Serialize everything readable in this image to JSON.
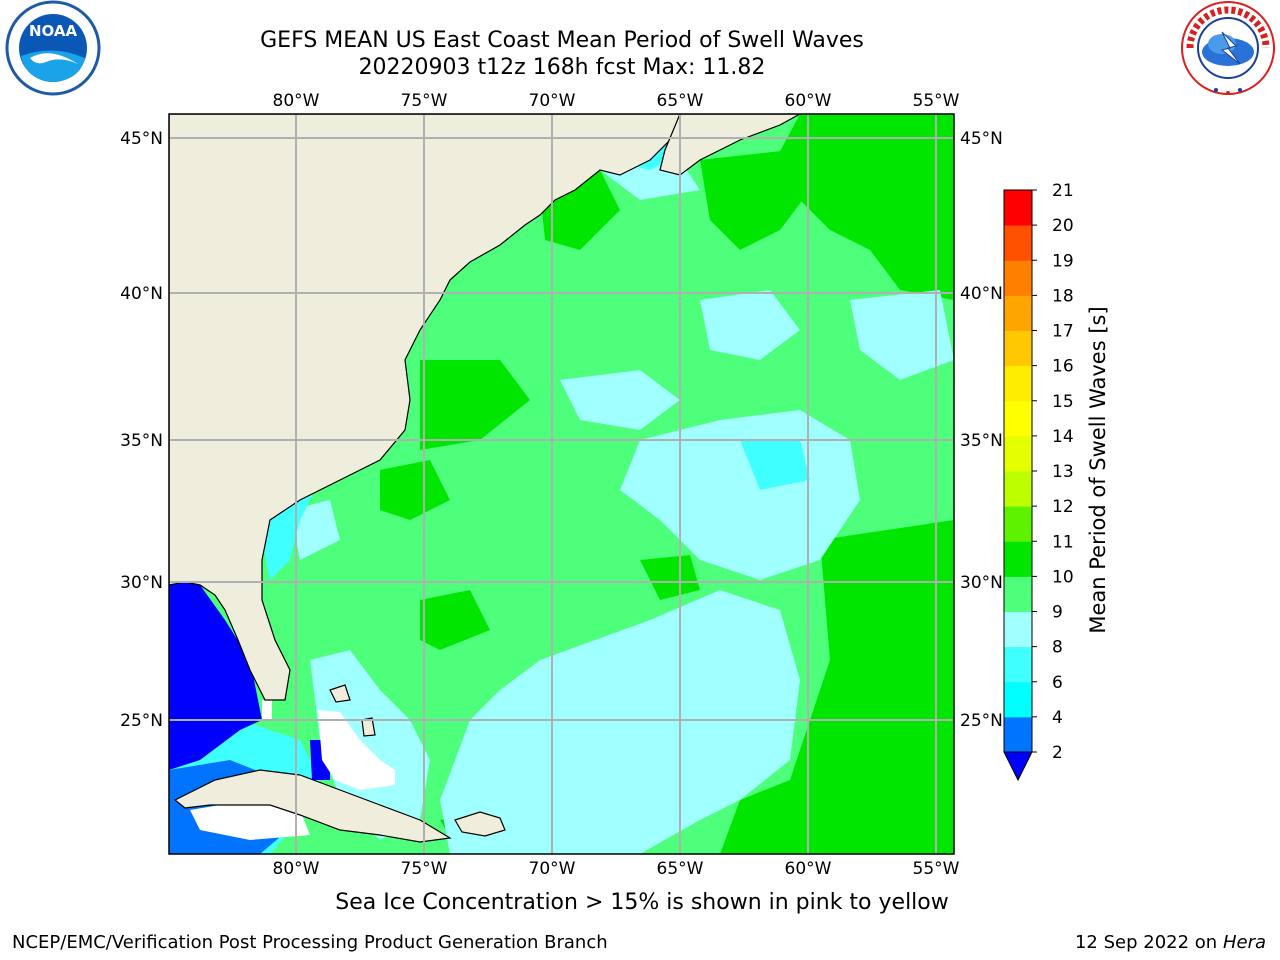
{
  "title_line1": "GEFS MEAN US East Coast Mean Period of Swell Waves",
  "title_line2": "20220903 t12z 168h fcst   Max: 11.82",
  "lon_labels": [
    "80°W",
    "75°W",
    "70°W",
    "65°W",
    "60°W",
    "55°W"
  ],
  "lat_labels": [
    "45°N",
    "40°N",
    "35°N",
    "30°N",
    "25°N"
  ],
  "colorbar": {
    "label": "Mean Period of Swell Waves [s]",
    "ticks": [
      "2",
      "4",
      "6",
      "8",
      "9",
      "10",
      "11",
      "12",
      "13",
      "14",
      "15",
      "16",
      "17",
      "18",
      "19",
      "20",
      "21"
    ],
    "colors": [
      "#0073ff",
      "#00ffff",
      "#40ffff",
      "#a0ffff",
      "#4dff7a",
      "#00e600",
      "#5ef200",
      "#bdff00",
      "#e6ff00",
      "#ffff00",
      "#ffed00",
      "#ffc800",
      "#ffa500",
      "#ff8000",
      "#ff5000",
      "#ff0000"
    ],
    "under_color": "#0000ff"
  },
  "colors": {
    "land": "#efeddc",
    "grid": "#b0b0b0",
    "ocean_base": "#4dff7a"
  },
  "note": "Sea Ice Concentration > 15% is shown in pink to yellow",
  "credit_left": "NCEP/EMC/Verification Post Processing Product Generation Branch",
  "credit_right_date": "12 Sep 2022 on",
  "credit_right_host": "Hera",
  "logos": [
    "noaa-logo",
    "nws-logo"
  ]
}
